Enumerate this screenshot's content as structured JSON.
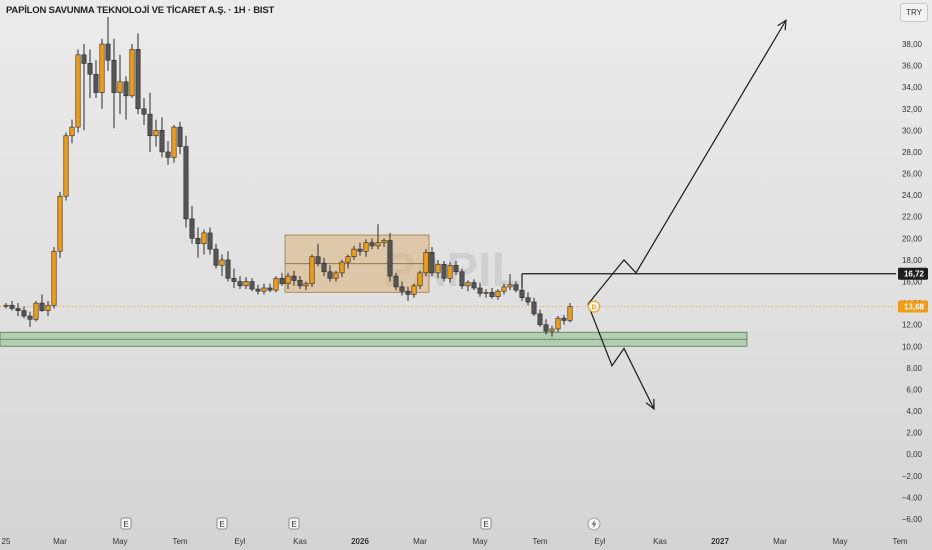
{
  "header": {
    "title": "PAPİLON SAVUNMA TEKNOLOJİ VE TİCARET A.Ş. · 1H · BIST",
    "currency": "TRY",
    "watermark": "PAPIL"
  },
  "colors": {
    "up": "#f39c12",
    "down": "#555555",
    "support_zone": "#8fbf8f",
    "consolidation_box": "#d9b27a"
  },
  "chart_data": {
    "type": "candlestick",
    "symbol": "PAPIL",
    "timeframe": "1H",
    "exchange": "BIST",
    "y_ticks": [
      "38,00",
      "36,00",
      "34,00",
      "32,00",
      "30,00",
      "28,00",
      "26,00",
      "24,00",
      "22,00",
      "20,00",
      "18,00",
      "16,00",
      "14,00",
      "12,00",
      "10,00",
      "8,00",
      "6,00",
      "4,00",
      "2,00",
      "0,00",
      "−2,00",
      "−4,00",
      "−6,00"
    ],
    "y_tick_values": [
      38,
      36,
      34,
      32,
      30,
      28,
      26,
      24,
      22,
      20,
      18,
      16,
      14,
      12,
      10,
      8,
      6,
      4,
      2,
      0,
      -2,
      -4,
      -6
    ],
    "ylim": [
      -6.5,
      40.5
    ],
    "x_ticks": [
      "25",
      "Mar",
      "May",
      "Tem",
      "Eyl",
      "Kas",
      "2026",
      "Mar",
      "May",
      "Tem",
      "Eyl",
      "Kas",
      "2027",
      "Mar",
      "May",
      "Tem"
    ],
    "x_tick_index": [
      0,
      9,
      19,
      29,
      39,
      49,
      59,
      69,
      79,
      89,
      99,
      109,
      119,
      129,
      139,
      149
    ],
    "price_labels": {
      "resistance": "16,72",
      "last": "13,68"
    },
    "resistance_level": 16.72,
    "last_price": 13.68,
    "support_zone": [
      10.0,
      11.3
    ],
    "consolidation_box": {
      "from_index": 47,
      "to_index": 70,
      "low": 15.0,
      "high": 20.3
    },
    "projection_bull": [
      [
        97,
        13.9
      ],
      [
        103,
        18.0
      ],
      [
        105,
        16.8
      ],
      [
        130,
        40.2
      ]
    ],
    "projection_bear": [
      [
        97,
        13.9
      ],
      [
        101,
        8.2
      ],
      [
        103,
        9.8
      ],
      [
        108,
        4.2
      ]
    ],
    "earnings_markers": [
      {
        "index": 20,
        "label": "E"
      },
      {
        "index": 36,
        "label": "E"
      },
      {
        "index": 48,
        "label": "E"
      },
      {
        "index": 80,
        "label": "E"
      }
    ],
    "dividend_marker": {
      "index": 98,
      "label": "D"
    },
    "candles": [
      [
        13.8,
        14.0,
        13.5,
        13.8
      ],
      [
        13.8,
        14.2,
        13.3,
        13.5
      ],
      [
        13.5,
        14.0,
        12.8,
        13.3
      ],
      [
        13.3,
        13.7,
        12.6,
        12.8
      ],
      [
        12.8,
        13.2,
        11.8,
        12.5
      ],
      [
        12.5,
        14.2,
        12.3,
        14.0
      ],
      [
        14.0,
        14.8,
        13.2,
        13.3
      ],
      [
        13.3,
        14.2,
        12.8,
        13.8
      ],
      [
        13.8,
        19.2,
        13.5,
        18.8
      ],
      [
        18.8,
        24.3,
        18.2,
        23.9
      ],
      [
        23.9,
        29.8,
        23.5,
        29.5
      ],
      [
        29.5,
        31.0,
        28.8,
        30.3
      ],
      [
        30.3,
        37.5,
        29.8,
        37.0
      ],
      [
        37.0,
        38.0,
        30.0,
        36.2
      ],
      [
        36.2,
        37.5,
        33.0,
        35.2
      ],
      [
        35.2,
        36.5,
        33.0,
        33.5
      ],
      [
        33.5,
        38.5,
        32.0,
        38.0
      ],
      [
        38.0,
        40.5,
        35.5,
        36.5
      ],
      [
        36.5,
        38.5,
        30.2,
        33.5
      ],
      [
        33.5,
        37.0,
        31.5,
        34.5
      ],
      [
        34.5,
        35.0,
        31.0,
        33.2
      ],
      [
        33.2,
        38.0,
        33.0,
        37.5
      ],
      [
        37.5,
        39.0,
        31.5,
        32.0
      ],
      [
        32.0,
        33.0,
        30.5,
        31.5
      ],
      [
        31.5,
        33.5,
        28.0,
        29.5
      ],
      [
        29.5,
        31.0,
        28.5,
        30.0
      ],
      [
        30.0,
        31.2,
        27.5,
        28.0
      ],
      [
        28.0,
        29.0,
        26.8,
        27.5
      ],
      [
        27.5,
        30.5,
        27.0,
        30.3
      ],
      [
        30.3,
        30.8,
        27.8,
        28.5
      ],
      [
        28.5,
        29.5,
        21.0,
        21.8
      ],
      [
        21.8,
        23.0,
        19.5,
        20.0
      ],
      [
        20.0,
        21.0,
        18.2,
        19.5
      ],
      [
        19.5,
        20.8,
        18.5,
        20.5
      ],
      [
        20.5,
        21.0,
        18.5,
        19.0
      ],
      [
        19.0,
        19.5,
        17.2,
        17.5
      ],
      [
        17.5,
        18.5,
        16.5,
        18.0
      ],
      [
        18.0,
        18.8,
        16.0,
        16.3
      ],
      [
        16.3,
        17.2,
        15.4,
        16.0
      ],
      [
        16.0,
        16.5,
        15.3,
        15.6
      ],
      [
        15.6,
        16.4,
        15.3,
        16.0
      ],
      [
        16.0,
        16.3,
        15.1,
        15.3
      ],
      [
        15.3,
        15.7,
        14.8,
        15.1
      ],
      [
        15.1,
        15.8,
        14.8,
        15.4
      ],
      [
        15.4,
        15.8,
        15.0,
        15.2
      ],
      [
        15.2,
        16.5,
        15.0,
        16.3
      ],
      [
        16.3,
        16.8,
        15.6,
        15.8
      ],
      [
        15.8,
        16.8,
        15.3,
        16.5
      ],
      [
        16.5,
        17.0,
        15.6,
        16.1
      ],
      [
        16.1,
        16.5,
        15.3,
        15.6
      ],
      [
        15.6,
        16.0,
        15.2,
        15.8
      ],
      [
        15.8,
        18.5,
        15.5,
        18.3
      ],
      [
        18.3,
        19.5,
        17.4,
        17.7
      ],
      [
        17.7,
        18.2,
        16.5,
        16.9
      ],
      [
        16.9,
        17.5,
        16.0,
        16.3
      ],
      [
        16.3,
        17.0,
        16.0,
        16.8
      ],
      [
        16.8,
        18.0,
        16.4,
        17.8
      ],
      [
        17.8,
        18.5,
        17.2,
        18.3
      ],
      [
        18.3,
        19.3,
        18.0,
        19.0
      ],
      [
        19.0,
        19.6,
        18.4,
        18.8
      ],
      [
        18.8,
        19.9,
        18.3,
        19.6
      ],
      [
        19.6,
        20.0,
        19.0,
        19.3
      ],
      [
        19.3,
        21.3,
        19.0,
        19.6
      ],
      [
        19.6,
        20.0,
        19.2,
        19.8
      ],
      [
        19.8,
        20.5,
        16.0,
        16.5
      ],
      [
        16.5,
        16.8,
        15.2,
        15.5
      ],
      [
        15.5,
        16.0,
        14.7,
        15.1
      ],
      [
        15.1,
        15.5,
        14.2,
        14.8
      ],
      [
        14.8,
        15.8,
        14.5,
        15.6
      ],
      [
        15.6,
        17.0,
        15.3,
        16.8
      ],
      [
        16.8,
        19.0,
        16.5,
        18.7
      ],
      [
        18.7,
        19.2,
        16.5,
        16.8
      ],
      [
        16.8,
        18.0,
        16.3,
        17.6
      ],
      [
        17.6,
        17.9,
        16.0,
        16.3
      ],
      [
        16.3,
        17.8,
        15.9,
        17.5
      ],
      [
        17.5,
        17.9,
        16.6,
        16.9
      ],
      [
        16.9,
        17.2,
        15.3,
        15.6
      ],
      [
        15.6,
        16.1,
        15.1,
        15.9
      ],
      [
        15.9,
        16.2,
        15.2,
        15.4
      ],
      [
        15.4,
        15.9,
        14.6,
        14.9
      ],
      [
        14.9,
        15.3,
        14.5,
        15.0
      ],
      [
        15.0,
        15.4,
        14.4,
        14.6
      ],
      [
        14.6,
        15.3,
        14.3,
        15.1
      ],
      [
        15.1,
        15.8,
        14.8,
        15.5
      ],
      [
        15.5,
        16.7,
        15.2,
        15.7
      ],
      [
        15.7,
        16.0,
        15.0,
        15.2
      ],
      [
        15.2,
        15.6,
        14.2,
        14.5
      ],
      [
        14.5,
        15.0,
        13.8,
        14.1
      ],
      [
        14.1,
        14.5,
        12.8,
        13.0
      ],
      [
        13.0,
        13.4,
        11.8,
        12.0
      ],
      [
        12.0,
        12.5,
        11.1,
        11.4
      ],
      [
        11.4,
        11.9,
        10.9,
        11.6
      ],
      [
        11.6,
        12.8,
        11.3,
        12.6
      ],
      [
        12.6,
        12.9,
        12.0,
        12.4
      ],
      [
        12.4,
        14.0,
        12.2,
        13.68
      ]
    ]
  }
}
